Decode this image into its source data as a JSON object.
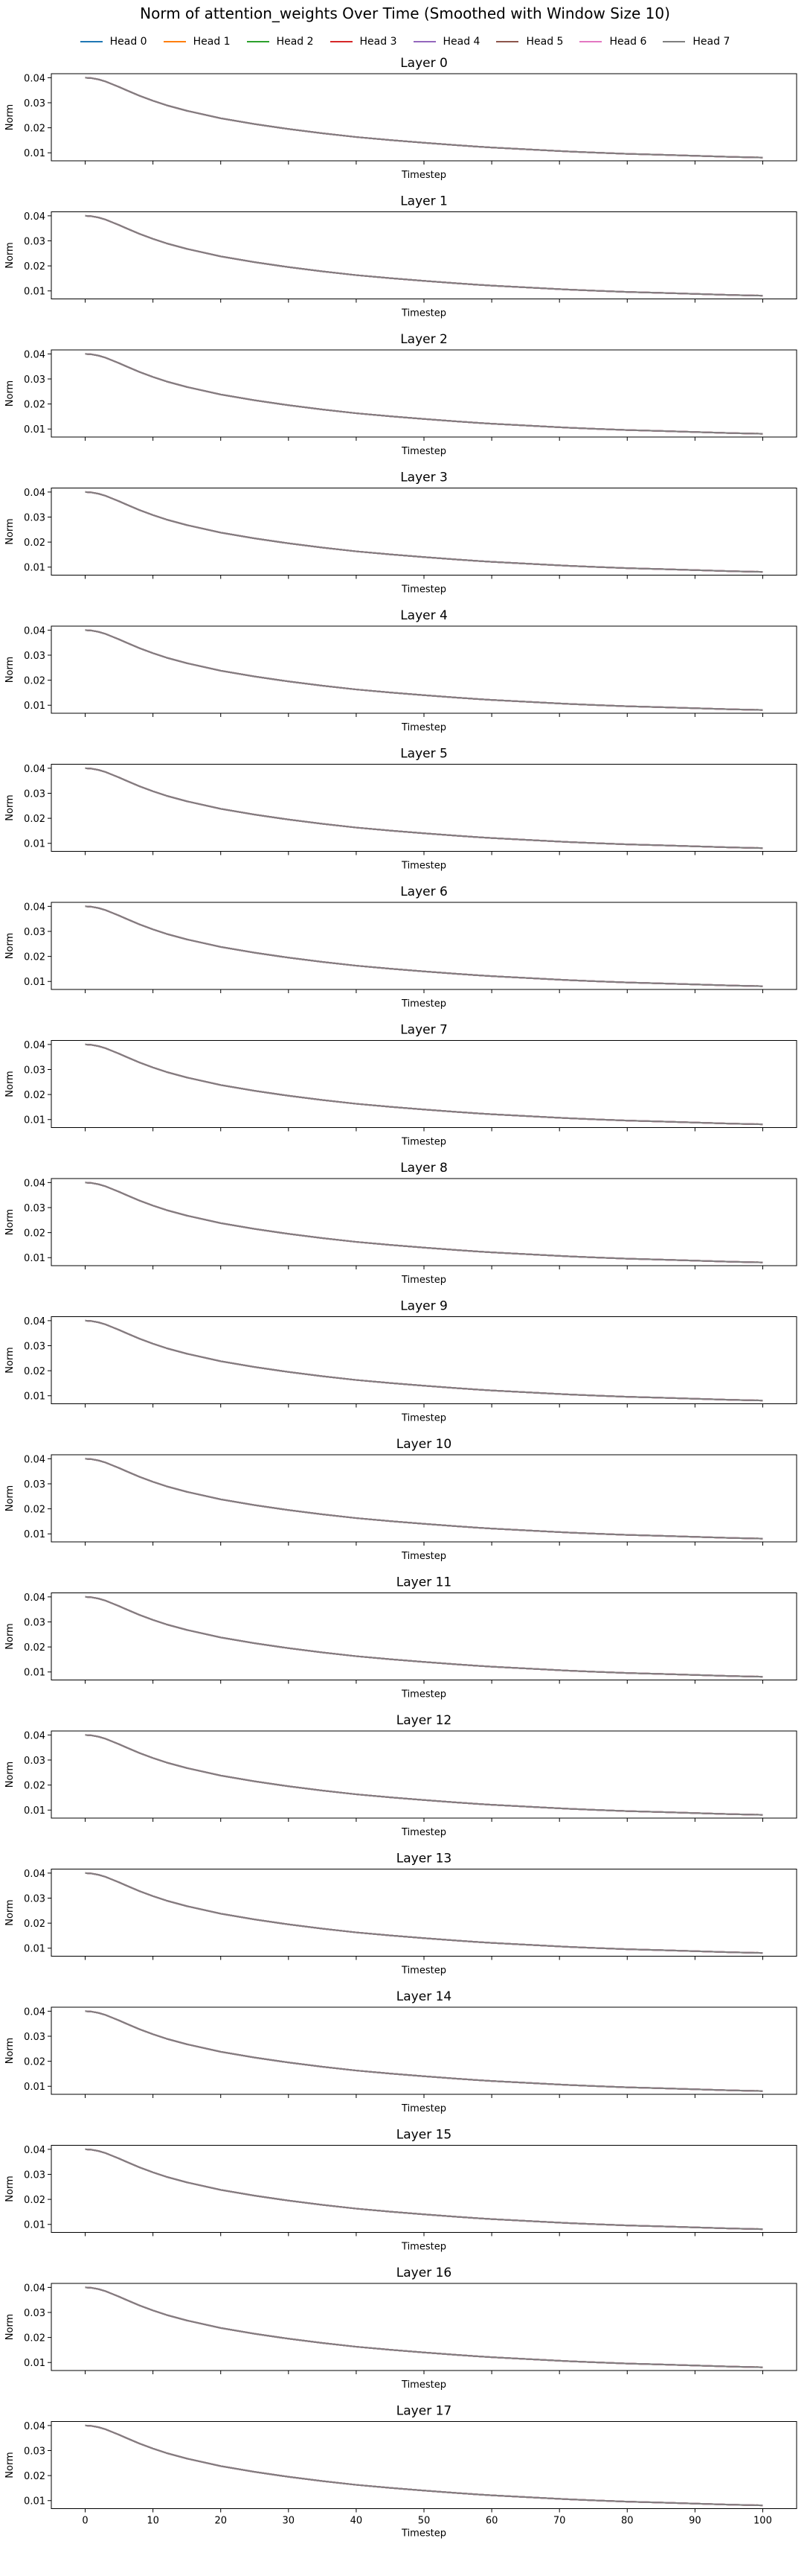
{
  "figure": {
    "title": "Norm of attention_weights Over Time (Smoothed with Window Size 10)",
    "legend": [
      {
        "name": "Head 0",
        "color": "#1f77b4"
      },
      {
        "name": "Head 1",
        "color": "#ff7f0e"
      },
      {
        "name": "Head 2",
        "color": "#2ca02c"
      },
      {
        "name": "Head 3",
        "color": "#d62728"
      },
      {
        "name": "Head 4",
        "color": "#9467bd"
      },
      {
        "name": "Head 5",
        "color": "#8c564b"
      },
      {
        "name": "Head 6",
        "color": "#e377c2"
      },
      {
        "name": "Head 7",
        "color": "#7f7f7f"
      }
    ]
  },
  "chart_data": {
    "type": "line",
    "xlabel": "Timestep",
    "ylabel": "Norm",
    "xlim": [
      -5,
      105
    ],
    "ylim": [
      0.0068,
      0.0416
    ],
    "xticks": [
      0,
      10,
      20,
      30,
      40,
      50,
      60,
      70,
      80,
      90,
      100
    ],
    "xtick_labels": [
      "0",
      "10",
      "20",
      "30",
      "40",
      "50",
      "60",
      "70",
      "80",
      "90",
      "100"
    ],
    "yticks": [
      0.01,
      0.02,
      0.03,
      0.04
    ],
    "ytick_labels": [
      "0.01",
      "0.02",
      "0.03",
      "0.04"
    ],
    "x": [
      0,
      1,
      2,
      3,
      4,
      5,
      6,
      8,
      10,
      12,
      15,
      20,
      25,
      30,
      35,
      40,
      45,
      50,
      55,
      60,
      65,
      70,
      75,
      80,
      85,
      90,
      95,
      100
    ],
    "series_values": [
      0.04,
      0.0398,
      0.0393,
      0.0385,
      0.0374,
      0.0363,
      0.0351,
      0.0328,
      0.0308,
      0.029,
      0.0268,
      0.0238,
      0.0215,
      0.0195,
      0.0178,
      0.0163,
      0.0151,
      0.014,
      0.013,
      0.0121,
      0.0114,
      0.0107,
      0.0101,
      0.0096,
      0.0092,
      0.0088,
      0.0084,
      0.0081
    ],
    "panels": [
      {
        "title": "Layer 0"
      },
      {
        "title": "Layer 1"
      },
      {
        "title": "Layer 2"
      },
      {
        "title": "Layer 3"
      },
      {
        "title": "Layer 4"
      },
      {
        "title": "Layer 5"
      },
      {
        "title": "Layer 6"
      },
      {
        "title": "Layer 7"
      },
      {
        "title": "Layer 8"
      },
      {
        "title": "Layer 9"
      },
      {
        "title": "Layer 10"
      },
      {
        "title": "Layer 11"
      },
      {
        "title": "Layer 12"
      },
      {
        "title": "Layer 13"
      },
      {
        "title": "Layer 14"
      },
      {
        "title": "Layer 15"
      },
      {
        "title": "Layer 16"
      },
      {
        "title": "Layer 17"
      }
    ],
    "grid": false,
    "legend_position": "top-center"
  }
}
